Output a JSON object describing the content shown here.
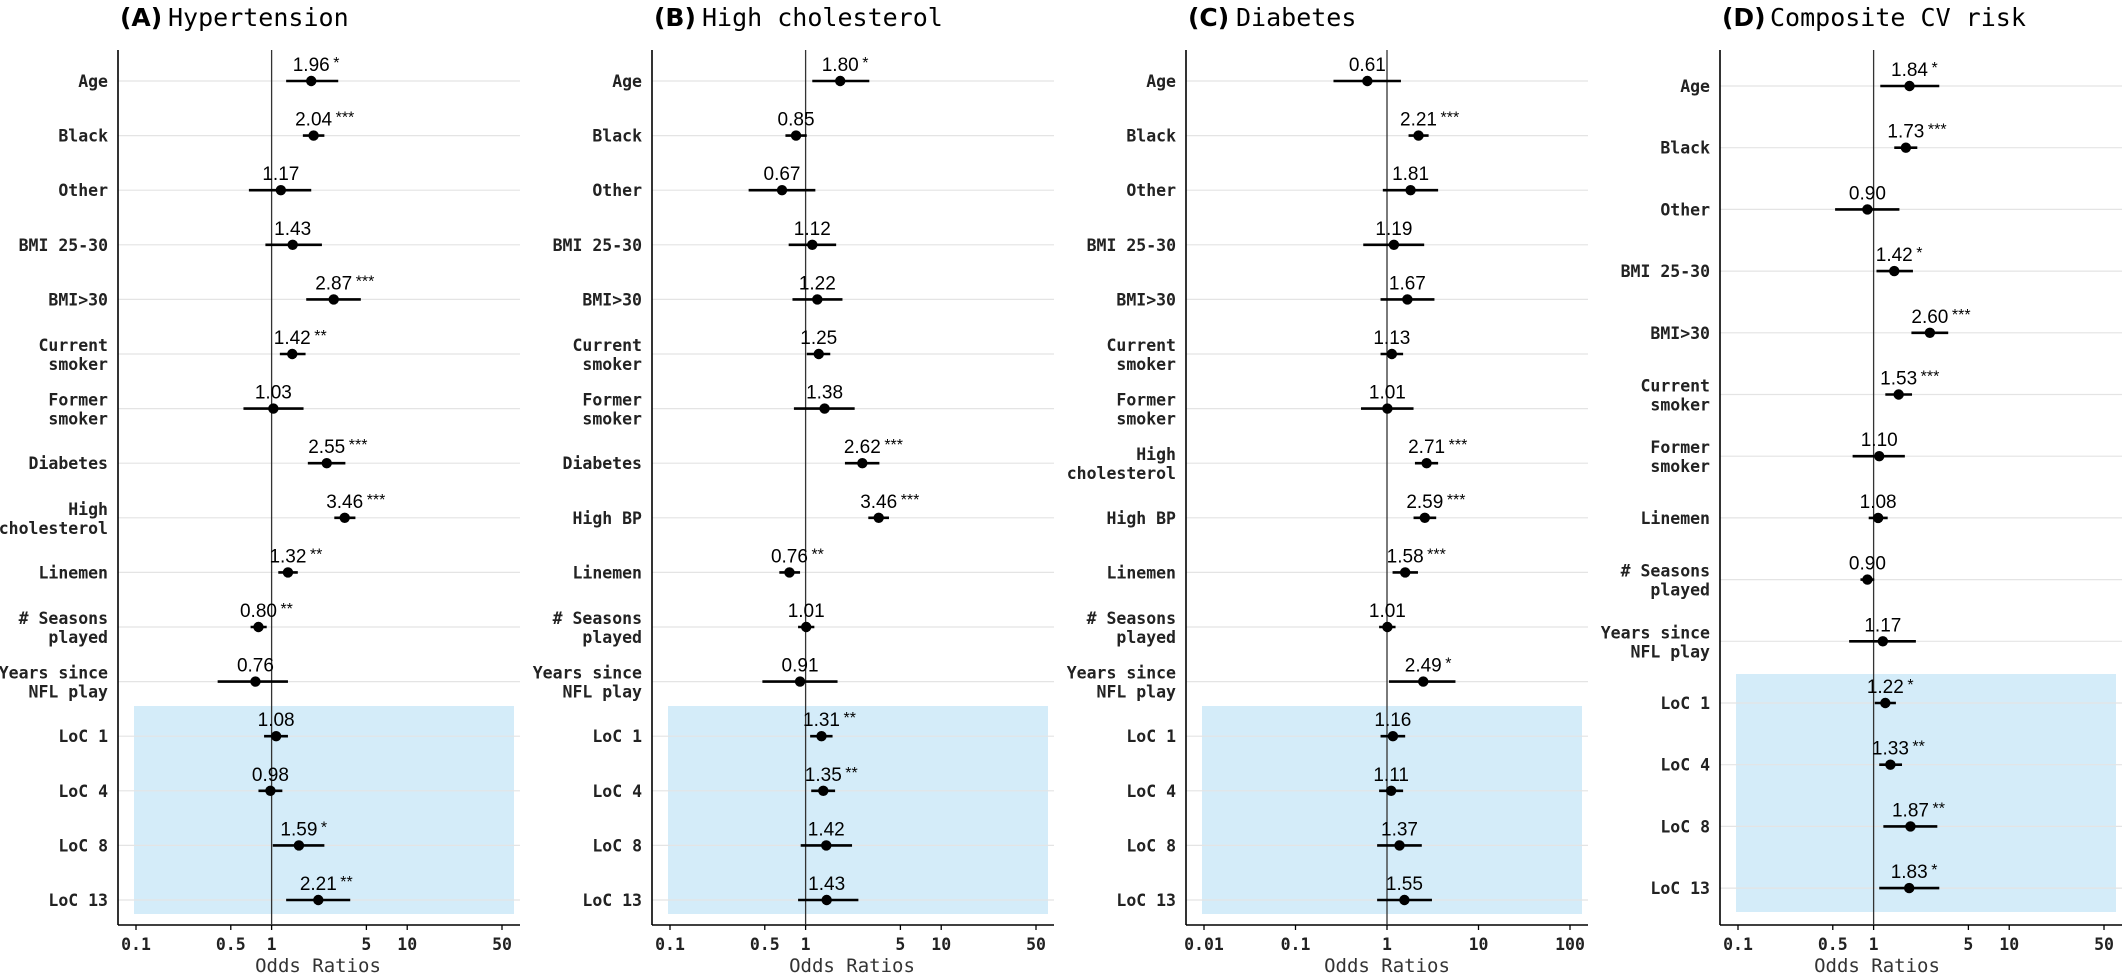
{
  "chart_data": [
    {
      "type": "forest",
      "tag": "(A)",
      "title": "Hypertension",
      "xlabel": "Odds Ratios",
      "xscale": "log",
      "xlim": [
        0.1,
        50
      ],
      "xticks": [
        0.1,
        0.5,
        1,
        5,
        10,
        50
      ],
      "xtick_labels": [
        "0.1",
        "0.5",
        "1",
        "5",
        "10",
        "50"
      ],
      "reference_line": 1,
      "highlighted_rows": [
        "LoC 1",
        "LoC 4",
        "LoC 8",
        "LoC 13"
      ],
      "highlight_color": "#d4ecf9",
      "rows": [
        {
          "label": [
            "Age"
          ],
          "or": 1.96,
          "lo": 1.28,
          "hi": 3.1,
          "or_text": "1.96",
          "sig": "*"
        },
        {
          "label": [
            "Black"
          ],
          "or": 2.04,
          "lo": 1.7,
          "hi": 2.45,
          "or_text": "2.04",
          "sig": "***"
        },
        {
          "label": [
            "Other"
          ],
          "or": 1.17,
          "lo": 0.68,
          "hi": 1.96,
          "or_text": "1.17",
          "sig": ""
        },
        {
          "label": [
            "BMI 25-30"
          ],
          "or": 1.43,
          "lo": 0.9,
          "hi": 2.35,
          "or_text": "1.43",
          "sig": ""
        },
        {
          "label": [
            "BMI>30"
          ],
          "or": 2.87,
          "lo": 1.8,
          "hi": 4.55,
          "or_text": "2.87",
          "sig": "***"
        },
        {
          "label": [
            "Current",
            "smoker"
          ],
          "or": 1.42,
          "lo": 1.15,
          "hi": 1.78,
          "or_text": "1.42",
          "sig": "**"
        },
        {
          "label": [
            "Former",
            "smoker"
          ],
          "or": 1.03,
          "lo": 0.62,
          "hi": 1.72,
          "or_text": "1.03",
          "sig": ""
        },
        {
          "label": [
            "Diabetes"
          ],
          "or": 2.55,
          "lo": 1.85,
          "hi": 3.5,
          "or_text": "2.55",
          "sig": "***"
        },
        {
          "label": [
            "High",
            "cholesterol"
          ],
          "or": 3.46,
          "lo": 2.9,
          "hi": 4.15,
          "or_text": "3.46",
          "sig": "***"
        },
        {
          "label": [
            "Linemen"
          ],
          "or": 1.32,
          "lo": 1.12,
          "hi": 1.56,
          "or_text": "1.32",
          "sig": "**"
        },
        {
          "label": [
            "# Seasons",
            "played"
          ],
          "or": 0.8,
          "lo": 0.7,
          "hi": 0.92,
          "or_text": "0.80",
          "sig": "**"
        },
        {
          "label": [
            "Years since",
            "NFL play"
          ],
          "or": 0.76,
          "lo": 0.4,
          "hi": 1.32,
          "or_text": "0.76",
          "sig": ""
        },
        {
          "label": [
            "LoC 1"
          ],
          "or": 1.08,
          "lo": 0.88,
          "hi": 1.32,
          "or_text": "1.08",
          "sig": ""
        },
        {
          "label": [
            "LoC 4"
          ],
          "or": 0.98,
          "lo": 0.8,
          "hi": 1.2,
          "or_text": "0.98",
          "sig": ""
        },
        {
          "label": [
            "LoC 8"
          ],
          "or": 1.59,
          "lo": 1.02,
          "hi": 2.45,
          "or_text": "1.59",
          "sig": "*"
        },
        {
          "label": [
            "LoC 13"
          ],
          "or": 2.21,
          "lo": 1.28,
          "hi": 3.8,
          "or_text": "2.21",
          "sig": "**"
        }
      ]
    },
    {
      "type": "forest",
      "tag": "(B)",
      "title": "High cholesterol",
      "xlabel": "Odds Ratios",
      "xscale": "log",
      "xlim": [
        0.1,
        50
      ],
      "xticks": [
        0.1,
        0.5,
        1,
        5,
        10,
        50
      ],
      "xtick_labels": [
        "0.1",
        "0.5",
        "1",
        "5",
        "10",
        "50"
      ],
      "reference_line": 1,
      "highlighted_rows": [
        "LoC 1",
        "LoC 4",
        "LoC 8",
        "LoC 13"
      ],
      "highlight_color": "#d4ecf9",
      "rows": [
        {
          "label": [
            "Age"
          ],
          "or": 1.8,
          "lo": 1.12,
          "hi": 2.95,
          "or_text": "1.80",
          "sig": "*"
        },
        {
          "label": [
            "Black"
          ],
          "or": 0.85,
          "lo": 0.71,
          "hi": 1.02,
          "or_text": "0.85",
          "sig": ""
        },
        {
          "label": [
            "Other"
          ],
          "or": 0.67,
          "lo": 0.38,
          "hi": 1.18,
          "or_text": "0.67",
          "sig": ""
        },
        {
          "label": [
            "BMI 25-30"
          ],
          "or": 1.12,
          "lo": 0.75,
          "hi": 1.68,
          "or_text": "1.12",
          "sig": ""
        },
        {
          "label": [
            "BMI>30"
          ],
          "or": 1.22,
          "lo": 0.8,
          "hi": 1.87,
          "or_text": "1.22",
          "sig": ""
        },
        {
          "label": [
            "Current",
            "smoker"
          ],
          "or": 1.25,
          "lo": 1.02,
          "hi": 1.52,
          "or_text": "1.25",
          "sig": ""
        },
        {
          "label": [
            "Former",
            "smoker"
          ],
          "or": 1.38,
          "lo": 0.82,
          "hi": 2.3,
          "or_text": "1.38",
          "sig": ""
        },
        {
          "label": [
            "Diabetes"
          ],
          "or": 2.62,
          "lo": 1.95,
          "hi": 3.5,
          "or_text": "2.62",
          "sig": "***"
        },
        {
          "label": [
            "High BP"
          ],
          "or": 3.46,
          "lo": 2.9,
          "hi": 4.12,
          "or_text": "3.46",
          "sig": "***"
        },
        {
          "label": [
            "Linemen"
          ],
          "or": 0.76,
          "lo": 0.64,
          "hi": 0.91,
          "or_text": "0.76",
          "sig": "**"
        },
        {
          "label": [
            "# Seasons",
            "played"
          ],
          "or": 1.01,
          "lo": 0.88,
          "hi": 1.16,
          "or_text": "1.01",
          "sig": ""
        },
        {
          "label": [
            "Years since",
            "NFL play"
          ],
          "or": 0.91,
          "lo": 0.48,
          "hi": 1.72,
          "or_text": "0.91",
          "sig": ""
        },
        {
          "label": [
            "LoC 1"
          ],
          "or": 1.31,
          "lo": 1.08,
          "hi": 1.58,
          "or_text": "1.31",
          "sig": "**"
        },
        {
          "label": [
            "LoC 4"
          ],
          "or": 1.35,
          "lo": 1.1,
          "hi": 1.65,
          "or_text": "1.35",
          "sig": "**"
        },
        {
          "label": [
            "LoC 8"
          ],
          "or": 1.42,
          "lo": 0.92,
          "hi": 2.2,
          "or_text": "1.42",
          "sig": ""
        },
        {
          "label": [
            "LoC 13"
          ],
          "or": 1.43,
          "lo": 0.88,
          "hi": 2.45,
          "or_text": "1.43",
          "sig": ""
        }
      ]
    },
    {
      "type": "forest",
      "tag": "(C)",
      "title": "Diabetes",
      "xlabel": "Odds Ratios",
      "xscale": "log",
      "xlim": [
        0.01,
        100
      ],
      "xticks": [
        0.01,
        0.1,
        1,
        10,
        100
      ],
      "xtick_labels": [
        "0.01",
        "0.1",
        "1",
        "10",
        "100"
      ],
      "reference_line": 1,
      "highlighted_rows": [
        "LoC 1",
        "LoC 4",
        "LoC 8",
        "LoC 13"
      ],
      "highlight_color": "#d4ecf9",
      "rows": [
        {
          "label": [
            "Age"
          ],
          "or": 0.61,
          "lo": 0.26,
          "hi": 1.42,
          "or_text": "0.61",
          "sig": ""
        },
        {
          "label": [
            "Black"
          ],
          "or": 2.21,
          "lo": 1.72,
          "hi": 2.85,
          "or_text": "2.21",
          "sig": "***"
        },
        {
          "label": [
            "Other"
          ],
          "or": 1.81,
          "lo": 0.9,
          "hi": 3.62,
          "or_text": "1.81",
          "sig": ""
        },
        {
          "label": [
            "BMI 25-30"
          ],
          "or": 1.19,
          "lo": 0.55,
          "hi": 2.55,
          "or_text": "1.19",
          "sig": ""
        },
        {
          "label": [
            "BMI>30"
          ],
          "or": 1.67,
          "lo": 0.85,
          "hi": 3.3,
          "or_text": "1.67",
          "sig": ""
        },
        {
          "label": [
            "Current",
            "smoker"
          ],
          "or": 1.13,
          "lo": 0.85,
          "hi": 1.5,
          "or_text": "1.13",
          "sig": ""
        },
        {
          "label": [
            "Former",
            "smoker"
          ],
          "or": 1.01,
          "lo": 0.52,
          "hi": 1.95,
          "or_text": "1.01",
          "sig": ""
        },
        {
          "label": [
            "High",
            "cholesterol"
          ],
          "or": 2.71,
          "lo": 2.02,
          "hi": 3.62,
          "or_text": "2.71",
          "sig": "***"
        },
        {
          "label": [
            "High BP"
          ],
          "or": 2.59,
          "lo": 1.95,
          "hi": 3.45,
          "or_text": "2.59",
          "sig": "***"
        },
        {
          "label": [
            "Linemen"
          ],
          "or": 1.58,
          "lo": 1.15,
          "hi": 2.18,
          "or_text": "1.58",
          "sig": "***"
        },
        {
          "label": [
            "# Seasons",
            "played"
          ],
          "or": 1.01,
          "lo": 0.82,
          "hi": 1.24,
          "or_text": "1.01",
          "sig": ""
        },
        {
          "label": [
            "Years since",
            "NFL play"
          ],
          "or": 2.49,
          "lo": 1.05,
          "hi": 5.6,
          "or_text": "2.49",
          "sig": "*"
        },
        {
          "label": [
            "LoC 1"
          ],
          "or": 1.16,
          "lo": 0.85,
          "hi": 1.58,
          "or_text": "1.16",
          "sig": ""
        },
        {
          "label": [
            "LoC 4"
          ],
          "or": 1.11,
          "lo": 0.82,
          "hi": 1.5,
          "or_text": "1.11",
          "sig": ""
        },
        {
          "label": [
            "LoC 8"
          ],
          "or": 1.37,
          "lo": 0.78,
          "hi": 2.4,
          "or_text": "1.37",
          "sig": ""
        },
        {
          "label": [
            "LoC 13"
          ],
          "or": 1.55,
          "lo": 0.78,
          "hi": 3.1,
          "or_text": "1.55",
          "sig": ""
        }
      ]
    },
    {
      "type": "forest",
      "tag": "(D)",
      "title": "Composite CV risk",
      "xlabel": "Odds Ratios",
      "xscale": "log",
      "xlim": [
        0.1,
        50
      ],
      "xticks": [
        0.1,
        0.5,
        1,
        5,
        10,
        50
      ],
      "xtick_labels": [
        "0.1",
        "0.5",
        "1",
        "5",
        "10",
        "50"
      ],
      "reference_line": 1,
      "highlighted_rows": [
        "LoC 1",
        "LoC 4",
        "LoC 8",
        "LoC 13"
      ],
      "highlight_color": "#d4ecf9",
      "rows": [
        {
          "label": [
            "Age"
          ],
          "or": 1.84,
          "lo": 1.12,
          "hi": 3.05,
          "or_text": "1.84",
          "sig": "*"
        },
        {
          "label": [
            "Black"
          ],
          "or": 1.73,
          "lo": 1.42,
          "hi": 2.1,
          "or_text": "1.73",
          "sig": "***"
        },
        {
          "label": [
            "Other"
          ],
          "or": 0.9,
          "lo": 0.52,
          "hi": 1.55,
          "or_text": "0.90",
          "sig": ""
        },
        {
          "label": [
            "BMI 25-30"
          ],
          "or": 1.42,
          "lo": 1.05,
          "hi": 1.95,
          "or_text": "1.42",
          "sig": "*"
        },
        {
          "label": [
            "BMI>30"
          ],
          "or": 2.6,
          "lo": 1.9,
          "hi": 3.55,
          "or_text": "2.60",
          "sig": "***"
        },
        {
          "label": [
            "Current",
            "smoker"
          ],
          "or": 1.53,
          "lo": 1.22,
          "hi": 1.92,
          "or_text": "1.53",
          "sig": "***"
        },
        {
          "label": [
            "Former",
            "smoker"
          ],
          "or": 1.1,
          "lo": 0.7,
          "hi": 1.7,
          "or_text": "1.10",
          "sig": ""
        },
        {
          "label": [
            "Linemen"
          ],
          "or": 1.08,
          "lo": 0.92,
          "hi": 1.27,
          "or_text": "1.08",
          "sig": ""
        },
        {
          "label": [
            "# Seasons",
            "played"
          ],
          "or": 0.9,
          "lo": 0.8,
          "hi": 1.01,
          "or_text": "0.90",
          "sig": ""
        },
        {
          "label": [
            "Years since",
            "NFL play"
          ],
          "or": 1.17,
          "lo": 0.66,
          "hi": 2.05,
          "or_text": "1.17",
          "sig": ""
        },
        {
          "label": [
            "LoC 1"
          ],
          "or": 1.22,
          "lo": 1.02,
          "hi": 1.46,
          "or_text": "1.22",
          "sig": "*"
        },
        {
          "label": [
            "LoC 4"
          ],
          "or": 1.33,
          "lo": 1.1,
          "hi": 1.62,
          "or_text": "1.33",
          "sig": "**"
        },
        {
          "label": [
            "LoC 8"
          ],
          "or": 1.87,
          "lo": 1.18,
          "hi": 2.95,
          "or_text": "1.87",
          "sig": "**"
        },
        {
          "label": [
            "LoC 13"
          ],
          "or": 1.83,
          "lo": 1.1,
          "hi": 3.05,
          "or_text": "1.83",
          "sig": "*"
        }
      ]
    }
  ]
}
